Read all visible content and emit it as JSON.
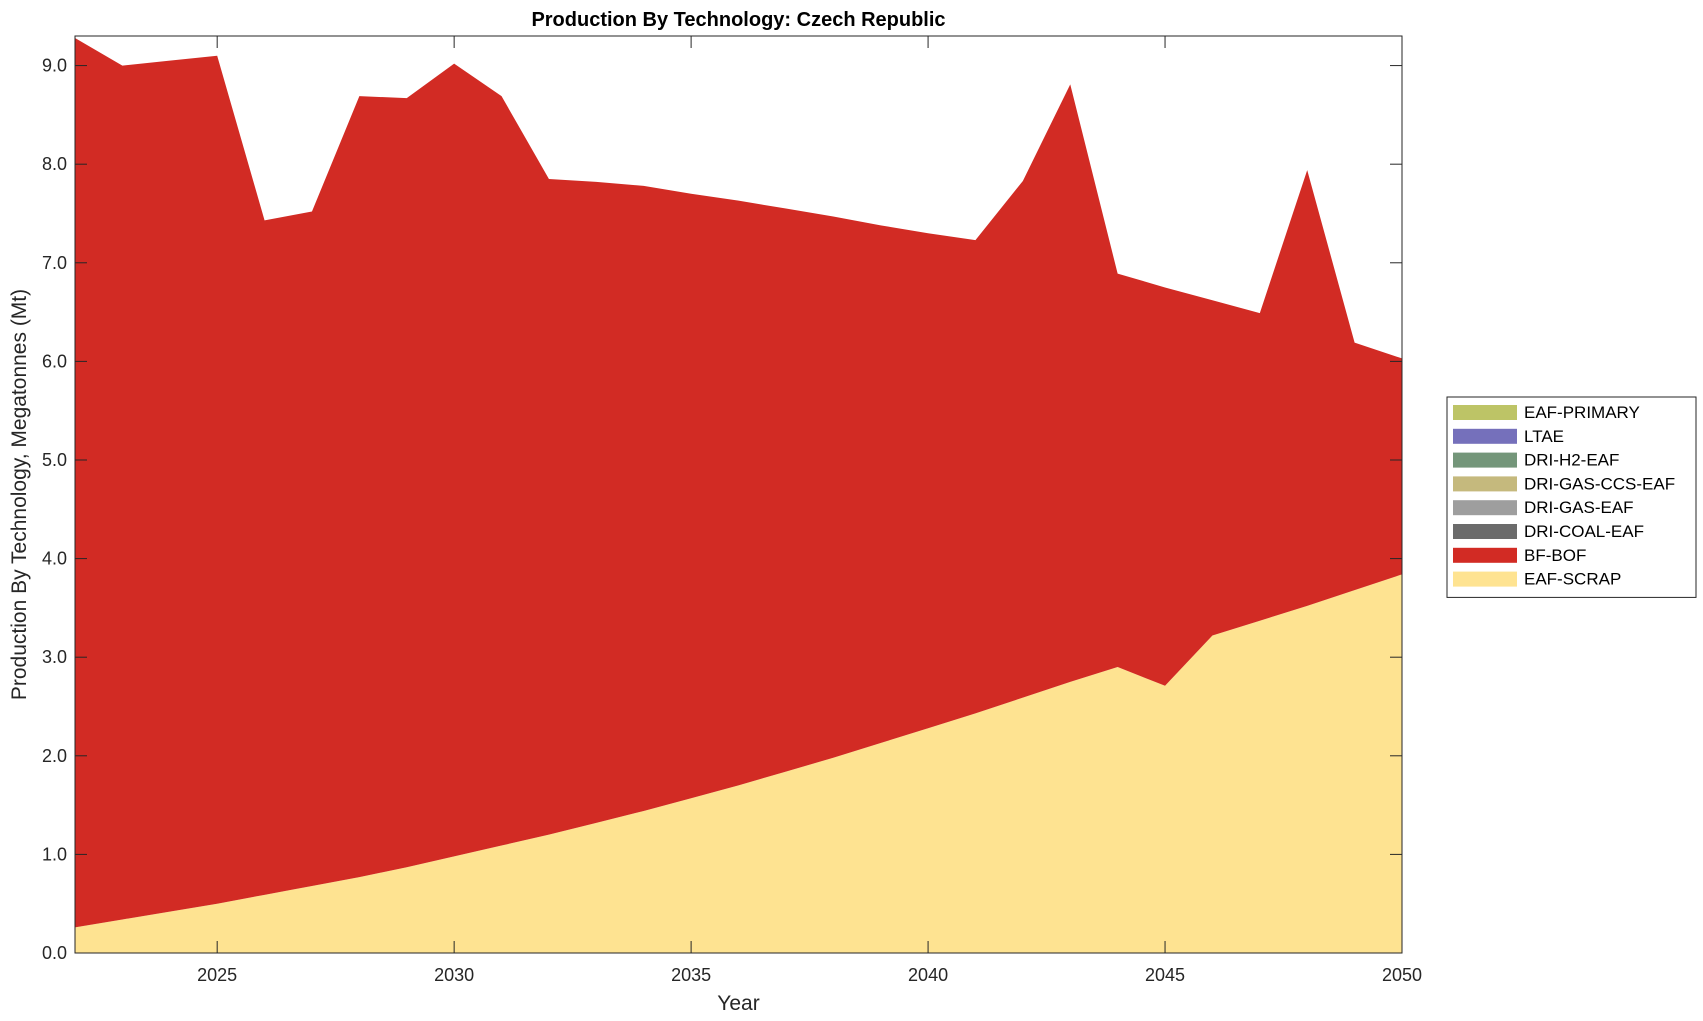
{
  "chart_data": {
    "type": "area",
    "stacked": true,
    "title": "Production By Technology: Czech Republic",
    "xlabel": "Year",
    "ylabel": "Production By Technology, Megatonnes (Mt)",
    "xlim": [
      2022,
      2050
    ],
    "ylim": [
      0,
      9.3
    ],
    "xticks": [
      2025,
      2030,
      2035,
      2040,
      2045,
      2050
    ],
    "yticks": [
      0.0,
      1.0,
      2.0,
      3.0,
      4.0,
      5.0,
      6.0,
      7.0,
      8.0,
      9.0
    ],
    "ytick_format": "0.0",
    "grid": false,
    "legend_position": "right",
    "x": [
      2022,
      2023,
      2024,
      2025,
      2026,
      2027,
      2028,
      2029,
      2030,
      2031,
      2032,
      2033,
      2034,
      2035,
      2036,
      2037,
      2038,
      2039,
      2040,
      2041,
      2042,
      2043,
      2044,
      2045,
      2046,
      2047,
      2048,
      2049,
      2050
    ],
    "series": [
      {
        "name": "EAF-SCRAP",
        "color": "#FEE391",
        "values": [
          0.26,
          0.34,
          0.42,
          0.5,
          0.59,
          0.68,
          0.77,
          0.87,
          0.98,
          1.09,
          1.2,
          1.32,
          1.44,
          1.57,
          1.7,
          1.84,
          1.98,
          2.13,
          2.28,
          2.43,
          2.59,
          2.75,
          2.9,
          2.71,
          3.22,
          3.37,
          3.52,
          3.68,
          3.84
        ]
      },
      {
        "name": "BF-BOF",
        "color": "#D22B24",
        "values": [
          9.02,
          8.66,
          8.63,
          8.6,
          6.84,
          6.84,
          7.92,
          7.8,
          8.04,
          7.6,
          6.65,
          6.5,
          6.34,
          6.13,
          5.93,
          5.71,
          5.49,
          5.25,
          5.02,
          4.8,
          5.24,
          6.06,
          3.99,
          4.04,
          3.4,
          3.12,
          4.42,
          2.51,
          2.19
        ]
      },
      {
        "name": "DRI-COAL-EAF",
        "color": "#6B6B6B",
        "values": [
          0,
          0,
          0,
          0,
          0,
          0,
          0,
          0,
          0,
          0,
          0,
          0,
          0,
          0,
          0,
          0,
          0,
          0,
          0,
          0,
          0,
          0,
          0,
          0,
          0,
          0,
          0,
          0,
          0
        ]
      },
      {
        "name": "DRI-GAS-EAF",
        "color": "#9E9E9E",
        "values": [
          0,
          0,
          0,
          0,
          0,
          0,
          0,
          0,
          0,
          0,
          0,
          0,
          0,
          0,
          0,
          0,
          0,
          0,
          0,
          0,
          0,
          0,
          0,
          0,
          0,
          0,
          0,
          0,
          0
        ]
      },
      {
        "name": "DRI-GAS-CCS-EAF",
        "color": "#C5B97D",
        "values": [
          0,
          0,
          0,
          0,
          0,
          0,
          0,
          0,
          0,
          0,
          0,
          0,
          0,
          0,
          0,
          0,
          0,
          0,
          0,
          0,
          0,
          0,
          0,
          0,
          0,
          0,
          0,
          0,
          0
        ]
      },
      {
        "name": "DRI-H2-EAF",
        "color": "#74967A",
        "values": [
          0,
          0,
          0,
          0,
          0,
          0,
          0,
          0,
          0,
          0,
          0,
          0,
          0,
          0,
          0,
          0,
          0,
          0,
          0,
          0,
          0,
          0,
          0,
          0,
          0,
          0,
          0,
          0,
          0
        ]
      },
      {
        "name": "LTAE",
        "color": "#7570BB",
        "values": [
          0,
          0,
          0,
          0,
          0,
          0,
          0,
          0,
          0,
          0,
          0,
          0,
          0,
          0,
          0,
          0,
          0,
          0,
          0,
          0,
          0,
          0,
          0,
          0,
          0,
          0,
          0,
          0,
          0
        ]
      },
      {
        "name": "EAF-PRIMARY",
        "color": "#BDC466",
        "values": [
          0,
          0,
          0,
          0,
          0,
          0,
          0,
          0,
          0,
          0,
          0,
          0,
          0,
          0,
          0,
          0,
          0,
          0,
          0,
          0,
          0,
          0,
          0,
          0,
          0,
          0,
          0,
          0,
          0
        ]
      }
    ],
    "legend_order": [
      "EAF-PRIMARY",
      "LTAE",
      "DRI-H2-EAF",
      "DRI-GAS-CCS-EAF",
      "DRI-GAS-EAF",
      "DRI-COAL-EAF",
      "BF-BOF",
      "EAF-SCRAP"
    ]
  }
}
